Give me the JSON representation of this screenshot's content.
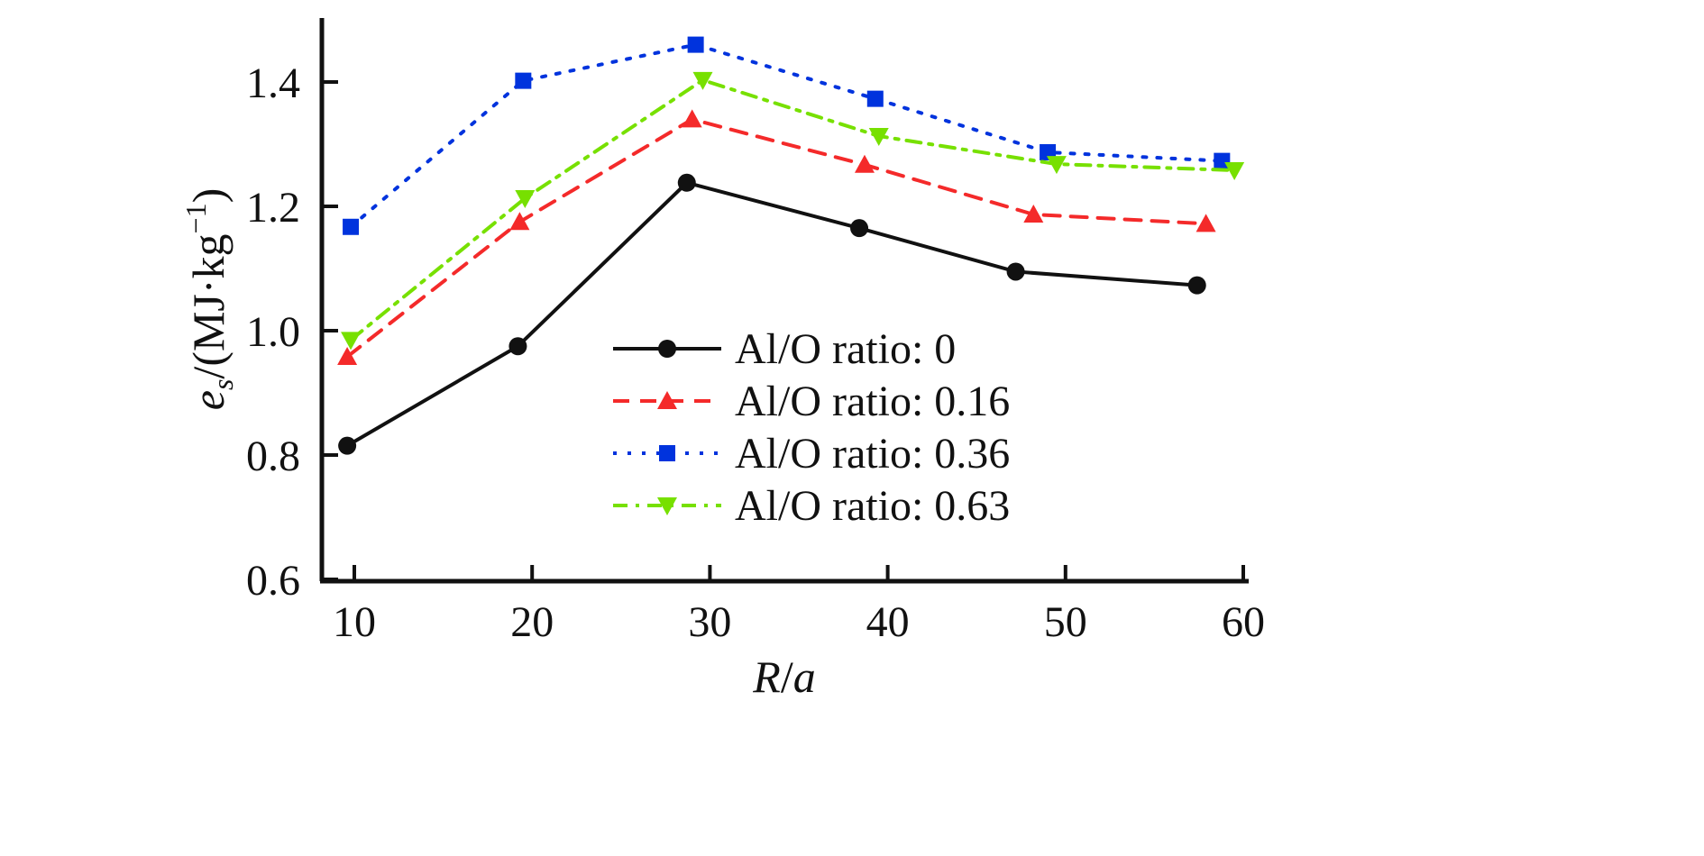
{
  "chart_data": {
    "type": "line",
    "title": "",
    "xlabel": "R/a",
    "xlabel_parts": {
      "var": "R",
      "sep": "/",
      "var2": "a"
    },
    "ylabel": "e_s/(MJ·kg^-1)",
    "ylabel_parts": {
      "var": "e",
      "sub": "s",
      "rest": "/(MJ·kg",
      "sup": "−1",
      "close": ")"
    },
    "xlim": [
      8,
      60.5
    ],
    "ylim": [
      0.6,
      1.5
    ],
    "xticks": [
      10,
      20,
      30,
      40,
      50,
      60
    ],
    "yticks": [
      0.6,
      0.8,
      1.0,
      1.2,
      1.4
    ],
    "xtick_labels": [
      "10",
      "20",
      "30",
      "40",
      "50",
      "60"
    ],
    "ytick_labels": [
      "0.6",
      "0.8",
      "1.0",
      "1.2",
      "1.4"
    ],
    "grid": false,
    "legend_position": "center-right",
    "series": [
      {
        "name": "Al/O ratio: 0",
        "color": "#111111",
        "line_style": "solid",
        "marker": "circle",
        "x": [
          9.6,
          19.2,
          28.7,
          38.4,
          47.2,
          57.4
        ],
        "y": [
          0.815,
          0.975,
          1.238,
          1.165,
          1.095,
          1.073
        ]
      },
      {
        "name": "Al/O ratio: 0.16",
        "color": "#f42a2a",
        "line_style": "dashed",
        "marker": "triangle-up",
        "x": [
          9.6,
          19.3,
          29.0,
          38.7,
          48.2,
          57.9
        ],
        "y": [
          0.958,
          1.175,
          1.34,
          1.267,
          1.187,
          1.172
        ]
      },
      {
        "name": "Al/O ratio: 0.36",
        "color": "#0033dd",
        "line_style": "dotted",
        "marker": "square",
        "x": [
          9.8,
          19.5,
          29.2,
          39.3,
          49.0,
          58.8
        ],
        "y": [
          1.167,
          1.402,
          1.46,
          1.373,
          1.287,
          1.273
        ]
      },
      {
        "name": "Al/O ratio: 0.63",
        "color": "#77e000",
        "line_style": "dash-dot",
        "marker": "triangle-down",
        "x": [
          9.8,
          19.6,
          29.6,
          39.5,
          49.5,
          59.5
        ],
        "y": [
          0.985,
          1.213,
          1.403,
          1.313,
          1.268,
          1.258
        ]
      }
    ]
  }
}
